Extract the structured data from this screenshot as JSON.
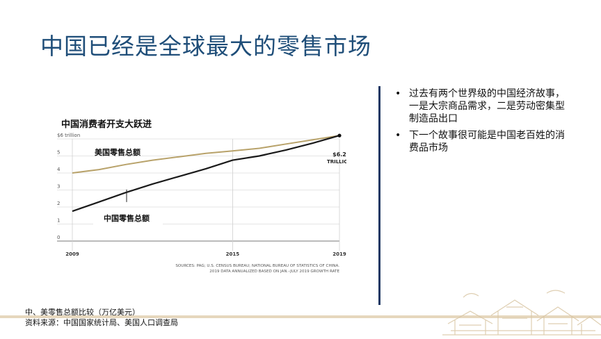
{
  "slide": {
    "title": "中国已经是全球最大的零售市场"
  },
  "chart": {
    "heading": "中国消费者开支大跃进"
  },
  "chart_data": {
    "type": "line",
    "title": "中国消费者开支大跃进",
    "x": [
      2009,
      2010,
      2011,
      2012,
      2013,
      2014,
      2015,
      2016,
      2017,
      2018,
      2019
    ],
    "xticks": [
      "2009",
      "2015",
      "2019"
    ],
    "yticks": [
      "$6 trillion",
      "5",
      "4",
      "3",
      "2",
      "1",
      "0"
    ],
    "ylim": [
      0,
      6
    ],
    "grid": true,
    "series": [
      {
        "name": "美国零售总额",
        "color": "#b8a26a",
        "values": [
          4.0,
          4.2,
          4.5,
          4.75,
          4.95,
          5.15,
          5.3,
          5.45,
          5.7,
          5.95,
          6.2
        ]
      },
      {
        "name": "中国零售总额",
        "color": "#1a1a1a",
        "values": [
          1.75,
          2.3,
          2.85,
          3.35,
          3.8,
          4.25,
          4.75,
          5.0,
          5.35,
          5.75,
          6.2
        ]
      }
    ],
    "annotation": {
      "line1": "$6.2",
      "line2": "TRILLION"
    },
    "source_line1": "SOURCES: PAG; U.S. CENSUS BUREAU; NATIONAL BUREAU OF STATISTICS OF CHINA.",
    "source_line2": "2019 DATA ANNUALIZED BASED ON JAN.–JULY 2019 GROWTH RATE"
  },
  "bullets": [
    {
      "text": "过去有两个世界级的中国经济故事，一是大宗商品需求，二是劳动密集型制造品出口"
    },
    {
      "text": "下一个故事很可能是中国老百姓的消费品市场"
    }
  ],
  "bullet_char": "•",
  "footer": {
    "line1": "中、美零售总额比较（万亿美元）",
    "line2": "资料来源：中国国家统计局、美国人口调查局"
  }
}
